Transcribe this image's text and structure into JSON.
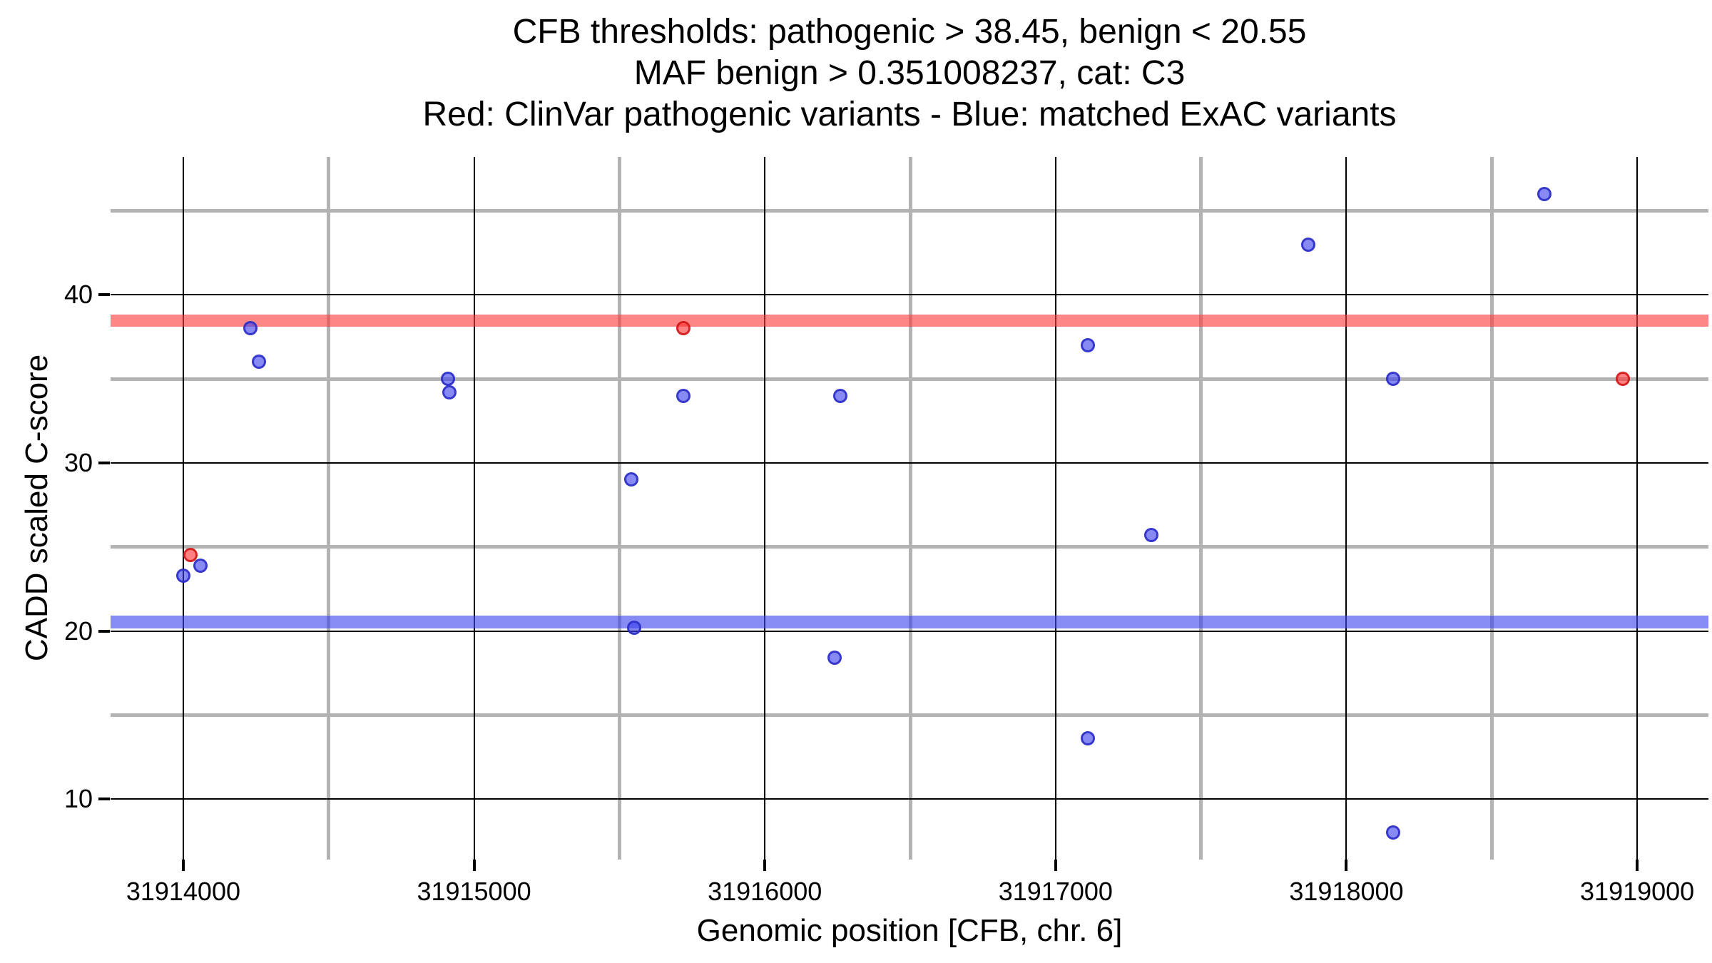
{
  "title": {
    "line1": "CFB thresholds: pathogenic > 38.45, benign < 20.55",
    "line2": "MAF benign > 0.351008237, cat: C3",
    "line3": "Red: ClinVar pathogenic variants - Blue: matched ExAC variants"
  },
  "axes": {
    "x_label": "Genomic position [CFB, chr. 6]",
    "y_label": "CADD scaled C-score"
  },
  "chart_data": {
    "type": "scatter",
    "title": "CFB thresholds: pathogenic > 38.45, benign < 20.55 / MAF benign > 0.351008237, cat: C3",
    "xlabel": "Genomic position [CFB, chr. 6]",
    "ylabel": "CADD scaled C-score",
    "xlim": [
      31913750,
      31919245
    ],
    "ylim": [
      6.4,
      48.2
    ],
    "grid": {
      "major_color": "#000000",
      "minor_color": "#b3b3b3"
    },
    "x_major_ticks": [
      31914000,
      31915000,
      31916000,
      31917000,
      31918000,
      31919000
    ],
    "x_tick_labels": [
      "31914000",
      "31915000",
      "31916000",
      "31917000",
      "31918000",
      "31919000"
    ],
    "x_minor_ticks": [
      31914500,
      31915500,
      31916500,
      31917500,
      31918500
    ],
    "y_major_ticks": [
      10,
      20,
      30,
      40
    ],
    "y_tick_labels": [
      "10",
      "20",
      "30",
      "40"
    ],
    "y_minor_ticks": [
      15,
      25,
      35,
      45
    ],
    "hlines": [
      {
        "name": "pathogenic-threshold-band",
        "label": "pathogenic > 38.45",
        "value": 38.45,
        "color": "rgba(255,60,60,0.62)",
        "thickness": 17
      },
      {
        "name": "benign-threshold-band",
        "label": "benign < 20.55",
        "value": 20.55,
        "color": "rgba(60,70,235,0.62)",
        "thickness": 18
      }
    ],
    "series": [
      {
        "name": "ClinVar pathogenic variants",
        "color_fill": "rgba(255,45,45,0.6)",
        "color_stroke": "rgba(210,25,25,0.9)",
        "point_name": "clinvar-pathogenic-point",
        "points": [
          [
            31914025,
            24.5
          ],
          [
            31915720,
            38.0
          ],
          [
            31918950,
            35.0
          ]
        ]
      },
      {
        "name": "matched ExAC variants",
        "color_fill": "rgba(55,60,235,0.6)",
        "color_stroke": "rgba(45,48,200,0.9)",
        "point_name": "exac-matched-point",
        "points": [
          [
            31914000,
            23.3
          ],
          [
            31914060,
            23.9
          ],
          [
            31914230,
            38.0
          ],
          [
            31914260,
            36.0
          ],
          [
            31914910,
            35.0
          ],
          [
            31914915,
            34.2
          ],
          [
            31915540,
            29.0
          ],
          [
            31915550,
            20.2
          ],
          [
            31915720,
            34.0
          ],
          [
            31916240,
            18.4
          ],
          [
            31916260,
            34.0
          ],
          [
            31917110,
            37.0
          ],
          [
            31917110,
            13.6
          ],
          [
            31917330,
            25.7
          ],
          [
            31917870,
            43.0
          ],
          [
            31918160,
            35.0
          ],
          [
            31918160,
            8.0
          ],
          [
            31918680,
            46.0
          ]
        ]
      }
    ]
  }
}
